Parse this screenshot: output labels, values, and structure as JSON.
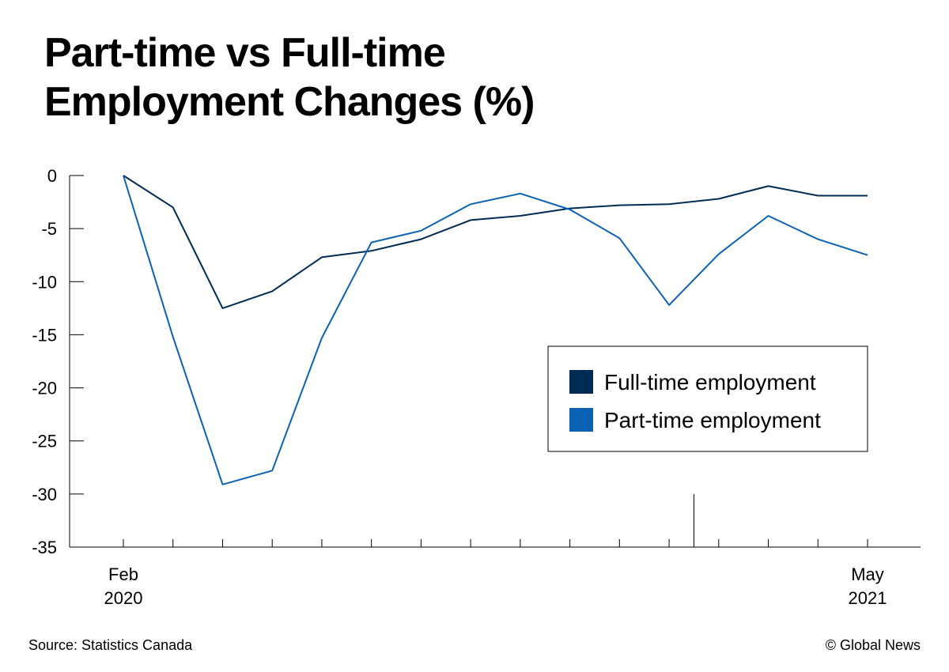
{
  "chart_data": {
    "type": "line",
    "title": "Part-time vs Full-time Employment Changes (%)",
    "xlabel": "",
    "ylabel": "",
    "x_tick_labels": [
      {
        "index": 0,
        "lines": [
          "Feb",
          "2020"
        ]
      },
      {
        "index": 15,
        "lines": [
          "May",
          "2021"
        ]
      }
    ],
    "x": [
      "Feb 2020",
      "Mar 2020",
      "Apr 2020",
      "May 2020",
      "Jun 2020",
      "Jul 2020",
      "Aug 2020",
      "Sep 2020",
      "Oct 2020",
      "Nov 2020",
      "Dec 2020",
      "Jan 2021",
      "Feb 2021",
      "Mar 2021",
      "Apr 2021",
      "May 2021"
    ],
    "ylim": [
      -35,
      0
    ],
    "yticks": [
      0,
      -5,
      -10,
      -15,
      -20,
      -25,
      -30,
      -35
    ],
    "ytick_labels": [
      "0",
      "-5",
      "-10",
      "-15",
      "-20",
      "-25",
      "-30",
      "-35"
    ],
    "grid": false,
    "legend_position": "right",
    "series": [
      {
        "name": "Full-time employment",
        "color": "#002b55",
        "values": [
          0,
          -3,
          -12.5,
          -10.9,
          -7.7,
          -7.1,
          -6.0,
          -4.2,
          -3.8,
          -3.1,
          -2.8,
          -2.7,
          -2.2,
          -1.0,
          -1.9,
          -1.9
        ]
      },
      {
        "name": "Part-time employment",
        "color": "#0b62b5",
        "values": [
          0,
          -15.2,
          -29.1,
          -27.8,
          -15.3,
          -6.3,
          -5.2,
          -2.7,
          -1.7,
          -3.2,
          -5.9,
          -12.2,
          -7.4,
          -3.8,
          -6.0,
          -7.5
        ]
      }
    ],
    "annotations": [
      {
        "type": "vertical-marker",
        "at_index": 11.5,
        "from": -35,
        "to": -30
      }
    ]
  },
  "footer": {
    "source": "Source: Statistics Canada",
    "credit": "© Global News"
  }
}
